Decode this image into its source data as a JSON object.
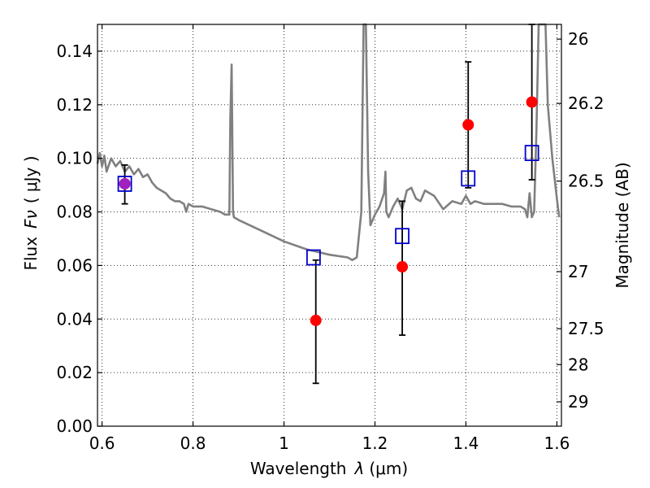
{
  "chart_data": {
    "type": "scatter",
    "xlabel_prefix": "Wavelength",
    "xlabel_symbol": "λ",
    "xlabel_unit": "(μm)",
    "ylabel_prefix": "Flux",
    "ylabel_symbol": "Fν",
    "ylabel_unit": "( μJy )",
    "y2label": "Magnitude (AB)",
    "xlim": [
      0.59,
      1.61
    ],
    "ylim": [
      0.0,
      0.15
    ],
    "grid": true,
    "xticks": [
      0.6,
      0.8,
      1.0,
      1.2,
      1.4,
      1.6
    ],
    "xtick_labels": [
      "0.6",
      "0.8",
      "1",
      "1.2",
      "1.4",
      "1.6"
    ],
    "yticks": [
      0.0,
      0.02,
      0.04,
      0.06,
      0.08,
      0.1,
      0.12,
      0.14
    ],
    "ytick_labels": [
      "0.00",
      "0.02",
      "0.04",
      "0.06",
      "0.08",
      "0.10",
      "0.12",
      "0.14"
    ],
    "right_ticks": [
      {
        "label": "26",
        "flux": 0.1445
      },
      {
        "label": "26.2",
        "flux": 0.1205
      },
      {
        "label": "26.5",
        "flux": 0.0915
      },
      {
        "label": "27",
        "flux": 0.0577
      },
      {
        "label": "27.5",
        "flux": 0.0364
      },
      {
        "label": "28",
        "flux": 0.023
      },
      {
        "label": "29",
        "flux": 0.0091
      }
    ],
    "series": [
      {
        "style": "line",
        "color": "#808080",
        "x": [
          0.59,
          0.595,
          0.6,
          0.605,
          0.61,
          0.62,
          0.63,
          0.64,
          0.65,
          0.66,
          0.67,
          0.68,
          0.69,
          0.7,
          0.71,
          0.72,
          0.73,
          0.74,
          0.75,
          0.76,
          0.77,
          0.78,
          0.785,
          0.79,
          0.8,
          0.82,
          0.84,
          0.86,
          0.87,
          0.88,
          0.882,
          0.885,
          0.888,
          0.89,
          0.9,
          0.95,
          1.0,
          1.05,
          1.1,
          1.14,
          1.15,
          1.16,
          1.17,
          1.175,
          1.18,
          1.185,
          1.19,
          1.2,
          1.21,
          1.22,
          1.223,
          1.225,
          1.23,
          1.24,
          1.25,
          1.26,
          1.27,
          1.28,
          1.29,
          1.3,
          1.31,
          1.32,
          1.33,
          1.35,
          1.37,
          1.39,
          1.4,
          1.41,
          1.42,
          1.44,
          1.46,
          1.48,
          1.5,
          1.52,
          1.53,
          1.535,
          1.54,
          1.545,
          1.55,
          1.555,
          1.56,
          1.57,
          1.575,
          1.58,
          1.59,
          1.6,
          1.605
        ],
        "y": [
          0.098,
          0.102,
          0.097,
          0.101,
          0.095,
          0.1,
          0.097,
          0.099,
          0.095,
          0.097,
          0.094,
          0.096,
          0.093,
          0.094,
          0.091,
          0.089,
          0.088,
          0.087,
          0.085,
          0.084,
          0.084,
          0.083,
          0.08,
          0.083,
          0.082,
          0.082,
          0.081,
          0.08,
          0.079,
          0.079,
          0.115,
          0.135,
          0.08,
          0.078,
          0.077,
          0.073,
          0.069,
          0.066,
          0.064,
          0.063,
          0.062,
          0.063,
          0.08,
          0.15,
          0.15,
          0.095,
          0.075,
          0.079,
          0.082,
          0.087,
          0.095,
          0.08,
          0.078,
          0.082,
          0.085,
          0.081,
          0.088,
          0.089,
          0.085,
          0.084,
          0.088,
          0.087,
          0.086,
          0.081,
          0.084,
          0.083,
          0.086,
          0.083,
          0.084,
          0.083,
          0.083,
          0.083,
          0.082,
          0.082,
          0.081,
          0.078,
          0.087,
          0.078,
          0.08,
          0.11,
          0.15,
          0.15,
          0.15,
          0.12,
          0.1,
          0.085,
          0.078
        ]
      },
      {
        "style": "errorbar",
        "color": "#000000",
        "points": [
          {
            "x": 0.65,
            "lo": 0.083,
            "hi": 0.0975
          },
          {
            "x": 1.07,
            "lo": 0.016,
            "hi": 0.062
          },
          {
            "x": 1.26,
            "lo": 0.034,
            "hi": 0.084
          },
          {
            "x": 1.405,
            "lo": 0.089,
            "hi": 0.136
          },
          {
            "x": 1.545,
            "lo": 0.092,
            "hi": 0.15
          }
        ]
      },
      {
        "style": "square",
        "color": "#0000cc",
        "x": [
          0.65,
          1.065,
          1.26,
          1.405,
          1.545
        ],
        "y": [
          0.0905,
          0.063,
          0.071,
          0.0925,
          0.102
        ]
      },
      {
        "style": "circle",
        "color": "#ff0000",
        "x": [
          0.65,
          1.07,
          1.26,
          1.405,
          1.545
        ],
        "y": [
          0.0905,
          0.0395,
          0.0595,
          0.1125,
          0.121
        ]
      },
      {
        "style": "circle",
        "color": "#a020c0",
        "x": [
          0.65
        ],
        "y": [
          0.0905
        ]
      }
    ]
  }
}
